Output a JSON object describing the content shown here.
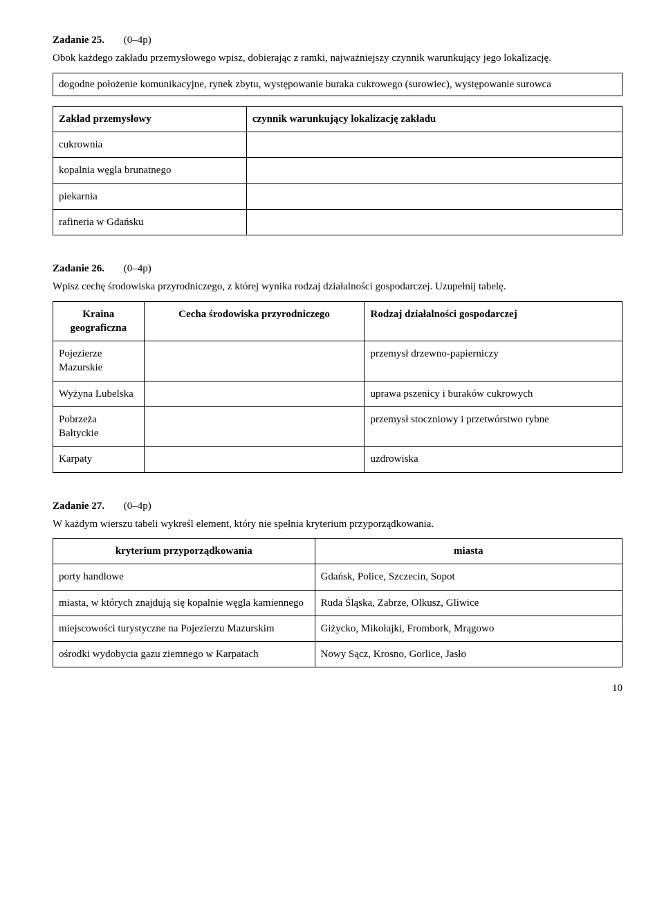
{
  "task25": {
    "heading_num": "Zadanie 25.",
    "heading_pts": "(0–4p)",
    "intro": "Obok każdego zakładu przemysłowego wpisz, dobierając z ramki, najważniejszy czynnik warunkujący jego lokalizację.",
    "box": "dogodne położenie komunikacyjne, rynek zbytu, występowanie buraka cukrowego (surowiec), występowanie surowca",
    "col1_header": "Zakład przemysłowy",
    "col2_header": "czynnik warunkujący lokalizację zakładu",
    "rows": [
      "cukrownia",
      "kopalnia węgla brunatnego",
      "piekarnia",
      "rafineria w Gdańsku"
    ]
  },
  "task26": {
    "heading_num": "Zadanie 26.",
    "heading_pts": "(0–4p)",
    "intro": "Wpisz cechę środowiska przyrodniczego, z której wynika rodzaj działalności gospodarczej. Uzupełnij tabelę.",
    "col1_header": "Kraina geograficzna",
    "col2_header": "Cecha środowiska przyrodniczego",
    "col3_header": "Rodzaj działalności gospodarczej",
    "rows": [
      {
        "region": "Pojezierze Mazurskie",
        "activity": "przemysł drzewno-papierniczy"
      },
      {
        "region": "Wyżyna Lubelska",
        "activity": "uprawa pszenicy i  buraków cukrowych"
      },
      {
        "region": "Pobrzeża Bałtyckie",
        "activity": "przemysł stoczniowy i przetwórstwo rybne"
      },
      {
        "region": "Karpaty",
        "activity": "uzdrowiska"
      }
    ]
  },
  "task27": {
    "heading_num": "Zadanie 27.",
    "heading_pts": "(0–4p)",
    "intro": "W każdym wierszu tabeli wykreśl element, który nie spełnia kryterium przyporządkowania.",
    "col1_header": "kryterium przyporządkowania",
    "col2_header": "miasta",
    "rows": [
      {
        "crit": "porty handlowe",
        "cities": "Gdańsk, Police, Szczecin, Sopot"
      },
      {
        "crit": "miasta, w których znajdują się kopalnie węgla kamiennego",
        "cities": "Ruda Śląska, Zabrze, Olkusz, Gliwice"
      },
      {
        "crit": "miejscowości turystyczne na Pojezierzu Mazurskim",
        "cities": "Giżycko, Mikołajki, Frombork, Mrągowo"
      },
      {
        "crit": "ośrodki wydobycia gazu ziemnego w Karpatach",
        "cities": "Nowy Sącz, Krosno, Gorlice, Jasło"
      }
    ]
  },
  "pagenum": "10"
}
